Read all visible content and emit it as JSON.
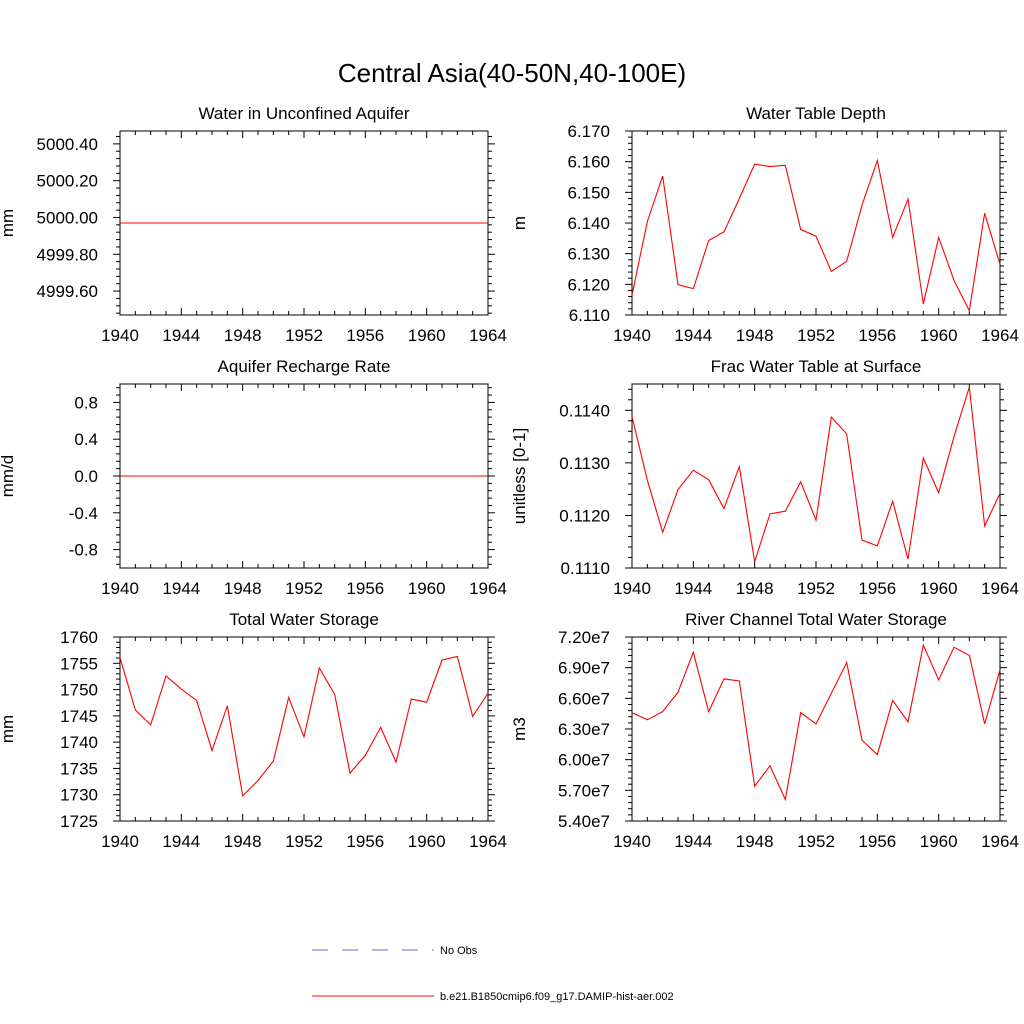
{
  "figure": {
    "title": "Central Asia(40-50N,40-100E)"
  },
  "legend": {
    "position": "bottom-center",
    "entries": [
      {
        "label": "No Obs",
        "color": "#5b6bd6",
        "style": "dashed"
      },
      {
        "label": "b.e21.B1850cmip6.f09_g17.DAMIP-hist-aer.002",
        "color": "#ff0000",
        "style": "solid"
      }
    ]
  },
  "chart_data": [
    {
      "type": "line",
      "title": "Water in Unconfined Aquifer",
      "ylabel": "mm",
      "xlim": [
        1940,
        1964
      ],
      "ylim": [
        4999.47,
        5000.47
      ],
      "xticks": [
        "1940",
        "1944",
        "1948",
        "1952",
        "1956",
        "1960",
        "1964"
      ],
      "yticks": [
        {
          "value": 4999.6,
          "label": "4999.60"
        },
        {
          "value": 4999.8,
          "label": "4999.80"
        },
        {
          "value": 5000.0,
          "label": "5000.00"
        },
        {
          "value": 5000.2,
          "label": "5000.20"
        },
        {
          "value": 5000.4,
          "label": "5000.40"
        }
      ],
      "series": [
        {
          "color": "#ff0000",
          "x": [
            1940,
            1964
          ],
          "values": [
            4999.97,
            4999.97
          ]
        }
      ]
    },
    {
      "type": "line",
      "title": "Water Table Depth",
      "ylabel": "m",
      "xlim": [
        1940,
        1964
      ],
      "ylim": [
        6.11,
        6.17
      ],
      "xticks": [
        "1940",
        "1944",
        "1948",
        "1952",
        "1956",
        "1960",
        "1964"
      ],
      "yticks": [
        {
          "value": 6.11,
          "label": "6.110"
        },
        {
          "value": 6.12,
          "label": "6.120"
        },
        {
          "value": 6.13,
          "label": "6.130"
        },
        {
          "value": 6.14,
          "label": "6.140"
        },
        {
          "value": 6.15,
          "label": "6.150"
        },
        {
          "value": 6.16,
          "label": "6.160"
        },
        {
          "value": 6.17,
          "label": "6.170"
        }
      ],
      "series": [
        {
          "color": "#ff0000",
          "x": [
            1940,
            1941,
            1942,
            1943,
            1944,
            1945,
            1946,
            1947,
            1948,
            1949,
            1950,
            1951,
            1952,
            1953,
            1954,
            1955,
            1956,
            1957,
            1958,
            1959,
            1960,
            1961,
            1962,
            1963,
            1964
          ],
          "values": [
            6.1165,
            6.1405,
            6.1553,
            6.1199,
            6.1186,
            6.1343,
            6.1371,
            6.148,
            6.1592,
            6.1584,
            6.1588,
            6.1379,
            6.1357,
            6.1242,
            6.1275,
            6.1458,
            6.1604,
            6.1353,
            6.1478,
            6.1136,
            6.1353,
            6.1213,
            6.1114,
            6.1432,
            6.1265
          ]
        }
      ]
    },
    {
      "type": "line",
      "title": "Aquifer Recharge Rate",
      "ylabel": "mm/d",
      "xlim": [
        1940,
        1964
      ],
      "ylim": [
        -1.0,
        1.0
      ],
      "xticks": [
        "1940",
        "1944",
        "1948",
        "1952",
        "1956",
        "1960",
        "1964"
      ],
      "yticks": [
        {
          "value": -0.8,
          "label": "-0.8"
        },
        {
          "value": -0.4,
          "label": "-0.4"
        },
        {
          "value": 0.0,
          "label": "0.0"
        },
        {
          "value": 0.4,
          "label": "0.4"
        },
        {
          "value": 0.8,
          "label": "0.8"
        }
      ],
      "series": [
        {
          "color": "#ff0000",
          "x": [
            1940,
            1964
          ],
          "values": [
            0,
            0
          ]
        }
      ]
    },
    {
      "type": "line",
      "title": "Frac Water Table at Surface",
      "ylabel": "unitless [0-1]",
      "xlim": [
        1940,
        1964
      ],
      "ylim": [
        0.111,
        0.1145
      ],
      "xticks": [
        "1940",
        "1944",
        "1948",
        "1952",
        "1956",
        "1960",
        "1964"
      ],
      "yticks": [
        {
          "value": 0.111,
          "label": "0.1110"
        },
        {
          "value": 0.112,
          "label": "0.1120"
        },
        {
          "value": 0.113,
          "label": "0.1130"
        },
        {
          "value": 0.114,
          "label": "0.1140"
        }
      ],
      "series": [
        {
          "color": "#ff0000",
          "x": [
            1940,
            1941,
            1942,
            1943,
            1944,
            1945,
            1946,
            1947,
            1948,
            1949,
            1950,
            1951,
            1952,
            1953,
            1954,
            1955,
            1956,
            1957,
            1958,
            1959,
            1960,
            1961,
            1962,
            1963,
            1964
          ],
          "values": [
            0.11388,
            0.11267,
            0.11168,
            0.11249,
            0.11286,
            0.11268,
            0.11213,
            0.11293,
            0.11112,
            0.11203,
            0.11208,
            0.11264,
            0.11191,
            0.11387,
            0.11355,
            0.11153,
            0.11142,
            0.11227,
            0.11117,
            0.11309,
            0.11243,
            0.1135,
            0.11444,
            0.1118,
            0.11242
          ]
        }
      ]
    },
    {
      "type": "line",
      "title": "Total Water Storage",
      "ylabel": "mm",
      "xlim": [
        1940,
        1964
      ],
      "ylim": [
        1725,
        1760
      ],
      "xticks": [
        "1940",
        "1944",
        "1948",
        "1952",
        "1956",
        "1960",
        "1964"
      ],
      "yticks": [
        {
          "value": 1725,
          "label": "1725"
        },
        {
          "value": 1730,
          "label": "1730"
        },
        {
          "value": 1735,
          "label": "1735"
        },
        {
          "value": 1740,
          "label": "1740"
        },
        {
          "value": 1745,
          "label": "1745"
        },
        {
          "value": 1750,
          "label": "1750"
        },
        {
          "value": 1755,
          "label": "1755"
        },
        {
          "value": 1760,
          "label": "1760"
        }
      ],
      "series": [
        {
          "color": "#ff0000",
          "x": [
            1940,
            1941,
            1942,
            1943,
            1944,
            1945,
            1946,
            1947,
            1948,
            1949,
            1950,
            1951,
            1952,
            1953,
            1954,
            1955,
            1956,
            1957,
            1958,
            1959,
            1960,
            1961,
            1962,
            1963,
            1964
          ],
          "values": [
            1756.1,
            1746.1,
            1743.3,
            1752.6,
            1750.1,
            1747.9,
            1738.4,
            1746.9,
            1729.8,
            1732.7,
            1736.4,
            1748.5,
            1741.0,
            1754.1,
            1749.1,
            1734.1,
            1737.5,
            1742.8,
            1736.2,
            1748.2,
            1747.6,
            1755.6,
            1756.3,
            1744.9,
            1749.3
          ]
        }
      ]
    },
    {
      "type": "line",
      "title": "River Channel Total Water Storage",
      "ylabel": "m3",
      "xlim": [
        1940,
        1964
      ],
      "ylim": [
        54000000,
        72000000
      ],
      "xticks": [
        "1940",
        "1944",
        "1948",
        "1952",
        "1956",
        "1960",
        "1964"
      ],
      "yticks": [
        {
          "value": 54000000,
          "label": "5.40e7"
        },
        {
          "value": 57000000,
          "label": "5.70e7"
        },
        {
          "value": 60000000,
          "label": "6.00e7"
        },
        {
          "value": 63000000,
          "label": "6.30e7"
        },
        {
          "value": 66000000,
          "label": "6.60e7"
        },
        {
          "value": 69000000,
          "label": "6.90e7"
        },
        {
          "value": 72000000,
          "label": "7.20e7"
        }
      ],
      "series": [
        {
          "color": "#ff0000",
          "x": [
            1940,
            1941,
            1942,
            1943,
            1944,
            1945,
            1946,
            1947,
            1948,
            1949,
            1950,
            1951,
            1952,
            1953,
            1954,
            1955,
            1956,
            1957,
            1958,
            1959,
            1960,
            1961,
            1962,
            1963,
            1964
          ],
          "values": [
            64600000,
            63900000,
            64700000,
            66600000,
            70500000,
            64700000,
            67900000,
            67700000,
            57400000,
            59400000,
            56100000,
            64600000,
            63500000,
            66500000,
            69500000,
            61900000,
            60500000,
            65800000,
            63700000,
            71200000,
            67800000,
            71000000,
            70200000,
            63500000,
            68800000
          ]
        }
      ]
    }
  ]
}
